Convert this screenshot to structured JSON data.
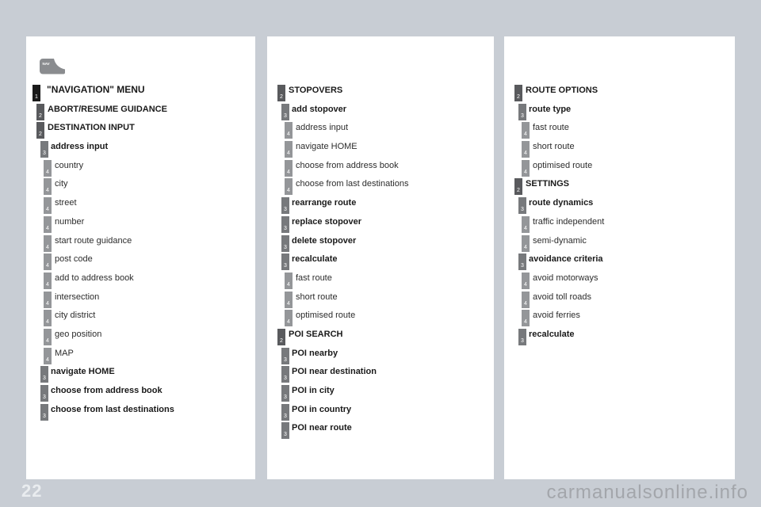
{
  "page": {
    "number": "22",
    "watermark": "carmanualsonline.info"
  },
  "nav_key": {
    "label": "NAV"
  },
  "colors": {
    "background": "#c8cdd4",
    "level1_box": "#1b1b1b",
    "level2_box": "#595a5d",
    "level3_box": "#77797c",
    "level4_box": "#949699"
  },
  "columns": [
    {
      "name": "navigation-menu",
      "rows": [
        {
          "level": 1,
          "label": "\"NAVIGATION\" MENU"
        },
        {
          "level": 2,
          "label": "ABORT/RESUME GUIDANCE"
        },
        {
          "level": 2,
          "label": "DESTINATION INPUT"
        },
        {
          "level": 3,
          "label": "address input"
        },
        {
          "level": 4,
          "label": "country"
        },
        {
          "level": 4,
          "label": "city"
        },
        {
          "level": 4,
          "label": "street"
        },
        {
          "level": 4,
          "label": "number"
        },
        {
          "level": 4,
          "label": "start route guidance"
        },
        {
          "level": 4,
          "label": "post code"
        },
        {
          "level": 4,
          "label": "add to address book"
        },
        {
          "level": 4,
          "label": "intersection"
        },
        {
          "level": 4,
          "label": "city district"
        },
        {
          "level": 4,
          "label": "geo position"
        },
        {
          "level": 4,
          "label": "MAP"
        },
        {
          "level": 3,
          "label": "navigate HOME"
        },
        {
          "level": 3,
          "label": "choose from address book"
        },
        {
          "level": 3,
          "label": "choose from last destinations"
        }
      ]
    },
    {
      "name": "stopovers-poi-search",
      "rows": [
        {
          "level": 2,
          "label": "STOPOVERS"
        },
        {
          "level": 3,
          "label": "add stopover"
        },
        {
          "level": 4,
          "label": "address input"
        },
        {
          "level": 4,
          "label": "navigate HOME"
        },
        {
          "level": 4,
          "label": "choose from address book"
        },
        {
          "level": 4,
          "label": "choose from last destinations"
        },
        {
          "level": 3,
          "label": "rearrange route"
        },
        {
          "level": 3,
          "label": "replace stopover"
        },
        {
          "level": 3,
          "label": "delete stopover"
        },
        {
          "level": 3,
          "label": "recalculate"
        },
        {
          "level": 4,
          "label": "fast route"
        },
        {
          "level": 4,
          "label": "short route"
        },
        {
          "level": 4,
          "label": "optimised route"
        },
        {
          "level": 2,
          "label": "POI SEARCH"
        },
        {
          "level": 3,
          "label": "POI nearby"
        },
        {
          "level": 3,
          "label": "POI near destination"
        },
        {
          "level": 3,
          "label": "POI in city"
        },
        {
          "level": 3,
          "label": "POI in country"
        },
        {
          "level": 3,
          "label": "POI near route"
        }
      ]
    },
    {
      "name": "route-options-settings",
      "rows": [
        {
          "level": 2,
          "label": "ROUTE OPTIONS"
        },
        {
          "level": 3,
          "label": "route type"
        },
        {
          "level": 4,
          "label": "fast route"
        },
        {
          "level": 4,
          "label": "short route"
        },
        {
          "level": 4,
          "label": "optimised route"
        },
        {
          "level": 2,
          "label": "SETTINGS"
        },
        {
          "level": 3,
          "label": "route dynamics"
        },
        {
          "level": 4,
          "label": "traffic independent"
        },
        {
          "level": 4,
          "label": "semi-dynamic"
        },
        {
          "level": 3,
          "label": "avoidance criteria"
        },
        {
          "level": 4,
          "label": "avoid motorways"
        },
        {
          "level": 4,
          "label": "avoid toll roads"
        },
        {
          "level": 4,
          "label": "avoid ferries"
        },
        {
          "level": 3,
          "label": "recalculate"
        }
      ]
    }
  ]
}
